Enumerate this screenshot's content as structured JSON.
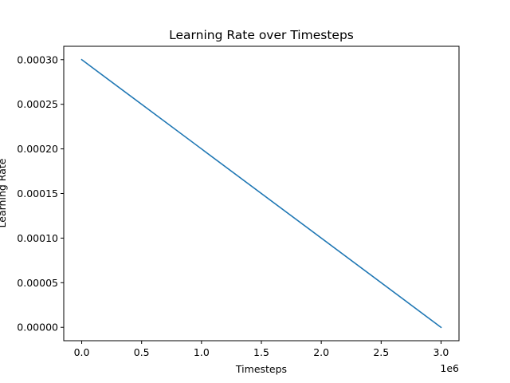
{
  "chart_data": {
    "type": "line",
    "title": "Learning Rate over Timesteps",
    "xlabel": "Timesteps",
    "ylabel": "Learning Rate",
    "x_offset_label": "1e6",
    "xlim": [
      -0.15,
      3.15
    ],
    "ylim": [
      -1.5e-05,
      0.000315
    ],
    "x_ticks": [
      0.0,
      0.5,
      1.0,
      1.5,
      2.0,
      2.5,
      3.0
    ],
    "x_tick_labels": [
      "0.0",
      "0.5",
      "1.0",
      "1.5",
      "2.0",
      "2.5",
      "3.0"
    ],
    "y_ticks": [
      0.0,
      5e-05,
      0.0001,
      0.00015,
      0.0002,
      0.00025,
      0.0003
    ],
    "y_tick_labels": [
      "0.00000",
      "0.00005",
      "0.00010",
      "0.00015",
      "0.00020",
      "0.00025",
      "0.00030"
    ],
    "grid": false,
    "series": [
      {
        "color": "#1f77b4",
        "x": [
          0.0,
          3.0
        ],
        "y": [
          0.0003,
          0.0
        ]
      }
    ]
  }
}
